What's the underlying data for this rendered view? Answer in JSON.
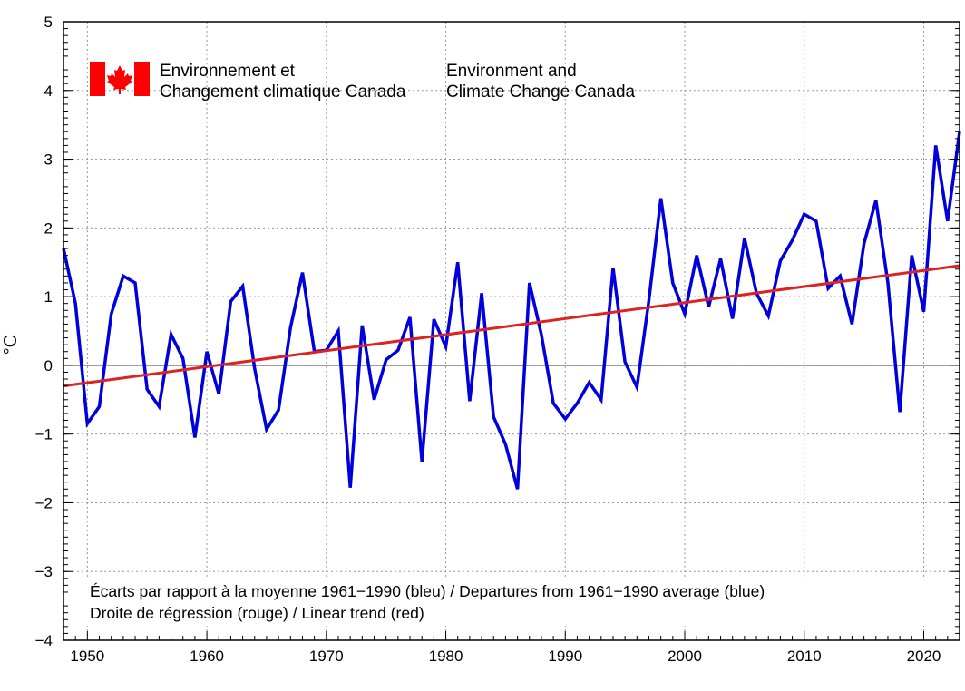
{
  "logo": {
    "fr_line1": "Environnement et",
    "fr_line2": "Changement climatique Canada",
    "en_line1": "Environment and",
    "en_line2": "Climate Change Canada",
    "flag_color": "#ff0000"
  },
  "chart_data": {
    "type": "line",
    "title": "",
    "xlabel": "",
    "ylabel": "°C",
    "xlim": [
      1948,
      2023
    ],
    "ylim": [
      -4,
      5
    ],
    "grid": true,
    "xticks": [
      1950,
      1960,
      1970,
      1980,
      1990,
      2000,
      2010,
      2020
    ],
    "xtick_labels": [
      "1950",
      "1960",
      "1970",
      "1980",
      "1990",
      "2000",
      "2010",
      "2020"
    ],
    "yticks": [
      -4,
      -3,
      -2,
      -1,
      0,
      1,
      2,
      3,
      4,
      5
    ],
    "ytick_labels": [
      "−4",
      "−3",
      "−2",
      "−1",
      "0",
      "1",
      "2",
      "3",
      "4",
      "5"
    ],
    "annotations": [
      "Écarts par rapport à la moyenne 1961−1990 (bleu) / Departures from 1961−1990 average (blue)",
      "Droite de régression (rouge) / Linear trend (red)"
    ],
    "x": [
      1948,
      1949,
      1950,
      1951,
      1952,
      1953,
      1954,
      1955,
      1956,
      1957,
      1958,
      1959,
      1960,
      1961,
      1962,
      1963,
      1964,
      1965,
      1966,
      1967,
      1968,
      1969,
      1970,
      1971,
      1972,
      1973,
      1974,
      1975,
      1976,
      1977,
      1978,
      1979,
      1980,
      1981,
      1982,
      1983,
      1984,
      1985,
      1986,
      1987,
      1988,
      1989,
      1990,
      1991,
      1992,
      1993,
      1994,
      1995,
      1996,
      1997,
      1998,
      1999,
      2000,
      2001,
      2002,
      2003,
      2004,
      2005,
      2006,
      2007,
      2008,
      2009,
      2010,
      2011,
      2012,
      2013,
      2014,
      2015,
      2016,
      2017,
      2018,
      2019,
      2020,
      2021,
      2022,
      2023
    ],
    "series": [
      {
        "name": "Departures from 1961-1990 average",
        "color": "#0000dd",
        "values": [
          1.7,
          0.9,
          -0.85,
          -0.6,
          0.75,
          1.3,
          1.2,
          -0.35,
          -0.6,
          0.45,
          0.1,
          -1.05,
          0.2,
          -0.42,
          0.93,
          1.15,
          -0.05,
          -0.93,
          -0.65,
          0.55,
          1.35,
          0.2,
          0.22,
          0.5,
          -1.78,
          0.58,
          -0.5,
          0.08,
          0.22,
          0.7,
          -1.4,
          0.67,
          0.27,
          1.5,
          -0.52,
          1.05,
          -0.75,
          -1.15,
          -1.8,
          1.2,
          0.45,
          -0.55,
          -0.78,
          -0.55,
          -0.25,
          -0.5,
          1.42,
          0.05,
          -0.32,
          0.95,
          2.43,
          1.2,
          0.75,
          1.6,
          0.85,
          1.55,
          0.68,
          1.85,
          1.05,
          0.72,
          1.52,
          1.82,
          2.2,
          2.1,
          1.12,
          1.3,
          0.6,
          1.77,
          2.4,
          1.2,
          -0.68,
          1.6,
          0.78,
          3.2,
          2.1,
          3.4
        ]
      },
      {
        "name": "Linear trend",
        "color": "#dd2222",
        "x": [
          1948,
          2023
        ],
        "values": [
          -0.3,
          1.45
        ]
      }
    ]
  }
}
